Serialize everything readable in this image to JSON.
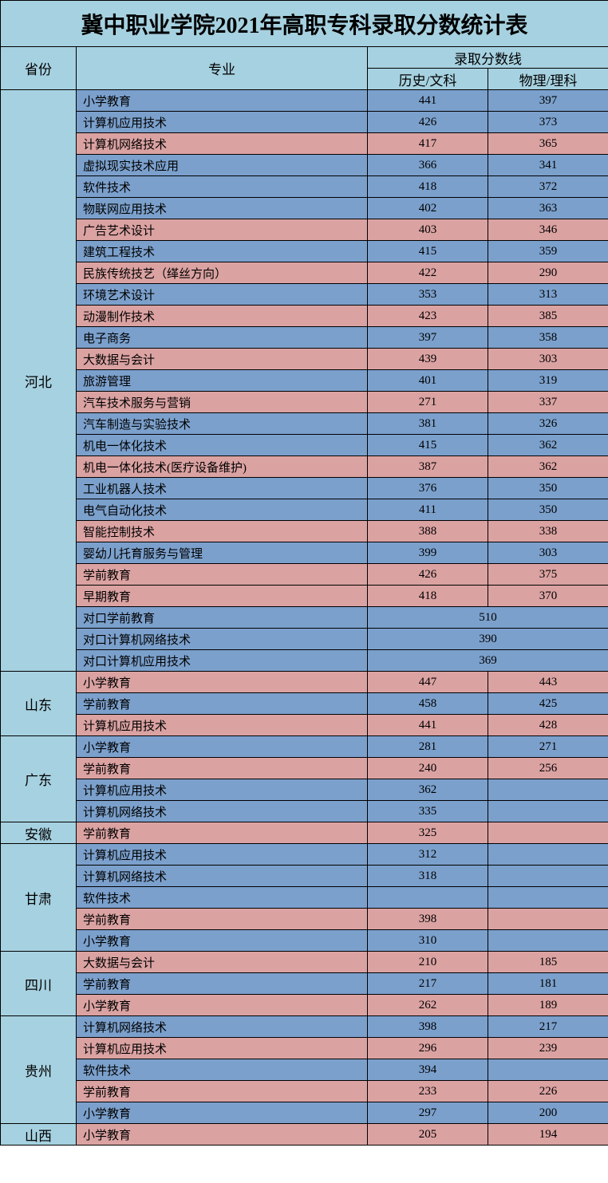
{
  "title": "冀中职业学院2021年高职专科录取分数统计表",
  "colors": {
    "header_bg": "#a6d1e0",
    "blue_bg": "#7ba0cc",
    "pink_bg": "#dba2a2",
    "border": "#000000"
  },
  "header": {
    "province": "省份",
    "major": "专业",
    "score_group": "录取分数线",
    "score1": "历史/文科",
    "score2": "物理/理科"
  },
  "groups": [
    {
      "province": "河北",
      "rows": [
        {
          "major": "小学教育",
          "s1": "441",
          "s2": "397",
          "color": "blue"
        },
        {
          "major": "计算机应用技术",
          "s1": "426",
          "s2": "373",
          "color": "blue"
        },
        {
          "major": "计算机网络技术",
          "s1": "417",
          "s2": "365",
          "color": "pink"
        },
        {
          "major": "虚拟现实技术应用",
          "s1": "366",
          "s2": "341",
          "color": "blue"
        },
        {
          "major": "软件技术",
          "s1": "418",
          "s2": "372",
          "color": "blue"
        },
        {
          "major": "物联网应用技术",
          "s1": "402",
          "s2": "363",
          "color": "blue"
        },
        {
          "major": "广告艺术设计",
          "s1": "403",
          "s2": "346",
          "color": "pink"
        },
        {
          "major": "建筑工程技术",
          "s1": "415",
          "s2": "359",
          "color": "blue"
        },
        {
          "major": "民族传统技艺（缂丝方向）",
          "s1": "422",
          "s2": "290",
          "color": "pink"
        },
        {
          "major": "环境艺术设计",
          "s1": "353",
          "s2": "313",
          "color": "blue"
        },
        {
          "major": "动漫制作技术",
          "s1": "423",
          "s2": "385",
          "color": "pink"
        },
        {
          "major": "电子商务",
          "s1": "397",
          "s2": "358",
          "color": "blue"
        },
        {
          "major": "大数据与会计",
          "s1": "439",
          "s2": "303",
          "color": "pink"
        },
        {
          "major": "旅游管理",
          "s1": "401",
          "s2": "319",
          "color": "blue"
        },
        {
          "major": "汽车技术服务与营销",
          "s1": "271",
          "s2": "337",
          "color": "pink"
        },
        {
          "major": "汽车制造与实验技术",
          "s1": "381",
          "s2": "326",
          "color": "blue"
        },
        {
          "major": "机电一体化技术",
          "s1": "415",
          "s2": "362",
          "color": "blue"
        },
        {
          "major": "机电一体化技术(医疗设备维护)",
          "s1": "387",
          "s2": "362",
          "color": "pink"
        },
        {
          "major": "工业机器人技术",
          "s1": "376",
          "s2": "350",
          "color": "blue"
        },
        {
          "major": "电气自动化技术",
          "s1": "411",
          "s2": "350",
          "color": "blue"
        },
        {
          "major": "智能控制技术",
          "s1": "388",
          "s2": "338",
          "color": "pink"
        },
        {
          "major": "婴幼儿托育服务与管理",
          "s1": "399",
          "s2": "303",
          "color": "blue"
        },
        {
          "major": "学前教育",
          "s1": "426",
          "s2": "375",
          "color": "pink"
        },
        {
          "major": "早期教育",
          "s1": "418",
          "s2": "370",
          "color": "pink"
        },
        {
          "major": "对口学前教育",
          "merged": "510",
          "color": "blue"
        },
        {
          "major": "对口计算机网络技术",
          "merged": "390",
          "color": "blue"
        },
        {
          "major": "对口计算机应用技术",
          "merged": "369",
          "color": "blue"
        }
      ]
    },
    {
      "province": "山东",
      "rows": [
        {
          "major": "小学教育",
          "s1": "447",
          "s2": "443",
          "color": "pink"
        },
        {
          "major": "学前教育",
          "s1": "458",
          "s2": "425",
          "color": "blue"
        },
        {
          "major": "计算机应用技术",
          "s1": "441",
          "s2": "428",
          "color": "pink"
        }
      ]
    },
    {
      "province": "广东",
      "rows": [
        {
          "major": "小学教育",
          "s1": "281",
          "s2": "271",
          "color": "blue"
        },
        {
          "major": "学前教育",
          "s1": "240",
          "s2": "256",
          "color": "pink"
        },
        {
          "major": "计算机应用技术",
          "s1": "362",
          "s2": "",
          "color": "blue"
        },
        {
          "major": "计算机网络技术",
          "s1": "335",
          "s2": "",
          "color": "blue"
        }
      ]
    },
    {
      "province": "安徽",
      "rows": [
        {
          "major": "学前教育",
          "s1": "325",
          "s2": "",
          "color": "pink"
        }
      ]
    },
    {
      "province": "甘肃",
      "rows": [
        {
          "major": "计算机应用技术",
          "s1": "312",
          "s2": "",
          "color": "blue"
        },
        {
          "major": "计算机网络技术",
          "s1": "318",
          "s2": "",
          "color": "blue"
        },
        {
          "major": "软件技术",
          "s1": "",
          "s2": "",
          "color": "blue"
        },
        {
          "major": "学前教育",
          "s1": "398",
          "s2": "",
          "color": "pink"
        },
        {
          "major": "小学教育",
          "s1": "310",
          "s2": "",
          "color": "blue"
        }
      ]
    },
    {
      "province": "四川",
      "rows": [
        {
          "major": "大数据与会计",
          "s1": "210",
          "s2": "185",
          "color": "pink"
        },
        {
          "major": "学前教育",
          "s1": "217",
          "s2": "181",
          "color": "blue"
        },
        {
          "major": "小学教育",
          "s1": "262",
          "s2": "189",
          "color": "pink"
        }
      ]
    },
    {
      "province": "贵州",
      "rows": [
        {
          "major": "计算机网络技术",
          "s1": "398",
          "s2": "217",
          "color": "blue"
        },
        {
          "major": "计算机应用技术",
          "s1": "296",
          "s2": "239",
          "color": "pink"
        },
        {
          "major": "软件技术",
          "s1": "394",
          "s2": "",
          "color": "blue"
        },
        {
          "major": "学前教育",
          "s1": "233",
          "s2": "226",
          "color": "pink"
        },
        {
          "major": "小学教育",
          "s1": "297",
          "s2": "200",
          "color": "blue"
        }
      ]
    },
    {
      "province": "山西",
      "rows": [
        {
          "major": "小学教育",
          "s1": "205",
          "s2": "194",
          "color": "pink"
        }
      ]
    }
  ]
}
